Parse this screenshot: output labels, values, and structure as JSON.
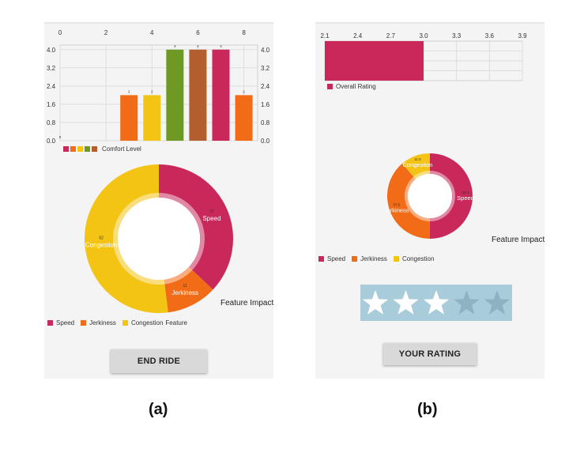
{
  "colors": {
    "speed": "#c8285a",
    "jerkiness": "#f26b16",
    "congestion": "#f4c414",
    "green": "#6e9a24",
    "brown": "#b25e2e",
    "star_on": "#ffffff",
    "star_off": "#8fb2c0",
    "stars_bg": "#a8ccda"
  },
  "screen_a": {
    "comfort_chart": {
      "type": "bar",
      "x_ticks": [
        "0",
        "2",
        "4",
        "6",
        "8"
      ],
      "y_ticks": [
        "0.0",
        "0.8",
        "1.6",
        "2.4",
        "3.2",
        "4.0"
      ],
      "xlim": [
        0,
        8.6
      ],
      "ylim": [
        0,
        4.2
      ],
      "bars": [
        {
          "x": 0,
          "value": 0,
          "label": "0",
          "color": "#c8285a"
        },
        {
          "x": 3,
          "value": 2,
          "label": "2",
          "color": "#f26b16"
        },
        {
          "x": 4,
          "value": 2,
          "label": "2",
          "color": "#f4c414"
        },
        {
          "x": 5,
          "value": 4,
          "label": "4",
          "color": "#6e9a24"
        },
        {
          "x": 6,
          "value": 4,
          "label": "4",
          "color": "#b25e2e"
        },
        {
          "x": 7,
          "value": 4,
          "label": "4",
          "color": "#c8285a"
        },
        {
          "x": 8,
          "value": 2,
          "label": "2",
          "color": "#f26b16"
        }
      ],
      "legend_label": "Comfort Level",
      "legend_colors": [
        "#c8285a",
        "#f26b16",
        "#f4c414",
        "#6e9a24",
        "#b25e2e"
      ]
    },
    "feature_donut": {
      "type": "pie",
      "slices": [
        {
          "name": "Speed",
          "value": 37,
          "label": "37",
          "color": "#c8285a"
        },
        {
          "name": "Jerkiness",
          "value": 11,
          "label": "11",
          "color": "#f26b16"
        },
        {
          "name": "Congestion",
          "value": 52,
          "label": "52",
          "color": "#f4c414"
        }
      ],
      "center_text": "Feature Impact",
      "legend": [
        "Speed",
        "Jerkiness",
        "Congestion"
      ],
      "legend_suffix": "Feature"
    },
    "end_ride_label": "END RIDE"
  },
  "screen_b": {
    "rating_chart": {
      "type": "bar",
      "x_ticks": [
        "2.1",
        "2.4",
        "2.7",
        "3.0",
        "3.3",
        "3.6",
        "3.9"
      ],
      "xlim": [
        2.1,
        3.9
      ],
      "value": 3.0,
      "series_name": "Overall Rating",
      "color": "#c8285a"
    },
    "feature_donut": {
      "type": "pie",
      "slices": [
        {
          "name": "Speed",
          "value": 49.1,
          "label": "49.1",
          "color": "#c8285a"
        },
        {
          "name": "Jerkiness",
          "value": 37.9,
          "label": "37.9",
          "color": "#f26b16"
        },
        {
          "name": "Congestion",
          "value": 11.0,
          "label": "11.0",
          "color": "#f4c414"
        }
      ],
      "center_text": "Feature Impact",
      "legend": [
        "Speed",
        "Jerkiness",
        "Congestion"
      ]
    },
    "stars": {
      "total": 5,
      "filled": 3
    },
    "your_rating_label": "YOUR RATING"
  },
  "captions": {
    "a": "(a)",
    "b": "(b)"
  }
}
